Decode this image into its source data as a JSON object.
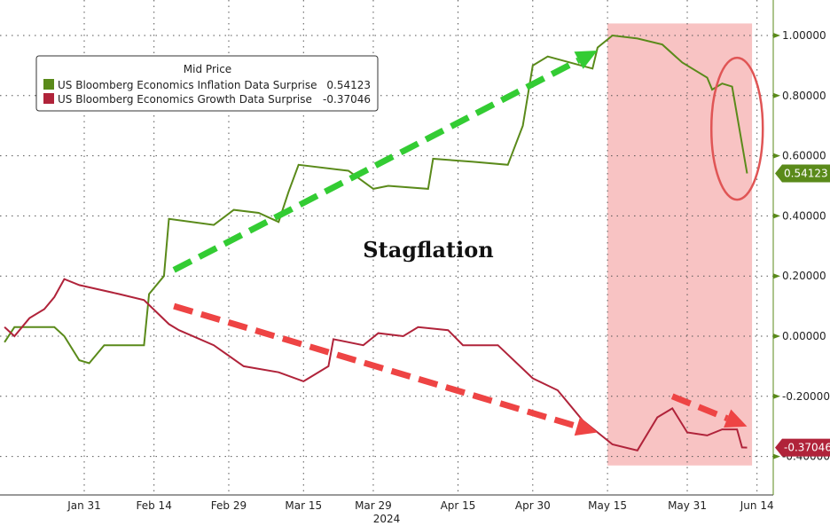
{
  "chart_data": {
    "type": "line",
    "title": "",
    "xlabel": "2024",
    "ylabel": "",
    "ylim": [
      -0.45,
      1.08
    ],
    "y_ticks": [
      "1.00000",
      "0.80000",
      "0.60000",
      "0.40000",
      "0.20000",
      "0.00000",
      "-0.20000",
      "-0.40000"
    ],
    "y_tick_values": [
      1.0,
      0.8,
      0.6,
      0.4,
      0.2,
      0.0,
      -0.2,
      -0.4
    ],
    "x_ticks": [
      {
        "label": "Jan 31",
        "date": "2024-01-31"
      },
      {
        "label": "Feb 14",
        "date": "2024-02-14"
      },
      {
        "label": "Feb 29",
        "date": "2024-02-29"
      },
      {
        "label": "Mar 15",
        "date": "2024-03-15"
      },
      {
        "label": "Mar 29",
        "date": "2024-03-29"
      },
      {
        "label": "Apr 15",
        "date": "2024-04-15"
      },
      {
        "label": "Apr 30",
        "date": "2024-04-30"
      },
      {
        "label": "May 15",
        "date": "2024-05-15"
      },
      {
        "label": "May 31",
        "date": "2024-05-31"
      },
      {
        "label": "Jun 14",
        "date": "2024-06-14"
      }
    ],
    "grid": true,
    "y_axis_side": "right",
    "legend": {
      "title": "Mid Price",
      "placement": "top-left",
      "entries": [
        {
          "name": "US Bloomberg Economics Inflation Data Surprise",
          "value": "0.54123",
          "color": "#5a8a1a"
        },
        {
          "name": "US Bloomberg Economics Growth Data Surprise",
          "value": "-0.37046",
          "color": "#b0233a"
        }
      ]
    },
    "series": [
      {
        "name": "US Bloomberg Economics Inflation Data Surprise",
        "color": "#5a8a1a",
        "last_value": "0.54123",
        "points": [
          [
            "2024-01-15",
            -0.02
          ],
          [
            "2024-01-17",
            0.03
          ],
          [
            "2024-01-25",
            0.03
          ],
          [
            "2024-01-27",
            0.0
          ],
          [
            "2024-01-30",
            -0.08
          ],
          [
            "2024-02-01",
            -0.09
          ],
          [
            "2024-02-04",
            -0.03
          ],
          [
            "2024-02-12",
            -0.03
          ],
          [
            "2024-02-13",
            0.14
          ],
          [
            "2024-02-16",
            0.2
          ],
          [
            "2024-02-17",
            0.39
          ],
          [
            "2024-02-26",
            0.37
          ],
          [
            "2024-03-01",
            0.42
          ],
          [
            "2024-03-06",
            0.41
          ],
          [
            "2024-03-10",
            0.38
          ],
          [
            "2024-03-12",
            0.48
          ],
          [
            "2024-03-14",
            0.57
          ],
          [
            "2024-03-24",
            0.55
          ],
          [
            "2024-03-29",
            0.49
          ],
          [
            "2024-04-01",
            0.5
          ],
          [
            "2024-04-09",
            0.49
          ],
          [
            "2024-04-10",
            0.59
          ],
          [
            "2024-04-18",
            0.58
          ],
          [
            "2024-04-25",
            0.57
          ],
          [
            "2024-04-28",
            0.7
          ],
          [
            "2024-04-30",
            0.9
          ],
          [
            "2024-05-03",
            0.93
          ],
          [
            "2024-05-12",
            0.89
          ],
          [
            "2024-05-13",
            0.96
          ],
          [
            "2024-05-16",
            1.0
          ],
          [
            "2024-05-21",
            0.99
          ],
          [
            "2024-05-26",
            0.97
          ],
          [
            "2024-05-30",
            0.91
          ],
          [
            "2024-06-04",
            0.86
          ],
          [
            "2024-06-05",
            0.82
          ],
          [
            "2024-06-07",
            0.84
          ],
          [
            "2024-06-09",
            0.83
          ],
          [
            "2024-06-12",
            0.54123
          ]
        ]
      },
      {
        "name": "US Bloomberg Economics Growth Data Surprise",
        "color": "#b0233a",
        "last_value": "-0.37046",
        "points": [
          [
            "2024-01-15",
            0.03
          ],
          [
            "2024-01-17",
            0.0
          ],
          [
            "2024-01-20",
            0.06
          ],
          [
            "2024-01-23",
            0.09
          ],
          [
            "2024-01-25",
            0.13
          ],
          [
            "2024-01-27",
            0.19
          ],
          [
            "2024-01-30",
            0.17
          ],
          [
            "2024-02-07",
            0.14
          ],
          [
            "2024-02-12",
            0.12
          ],
          [
            "2024-02-17",
            0.04
          ],
          [
            "2024-02-19",
            0.02
          ],
          [
            "2024-02-26",
            -0.03
          ],
          [
            "2024-03-03",
            -0.1
          ],
          [
            "2024-03-10",
            -0.12
          ],
          [
            "2024-03-15",
            -0.15
          ],
          [
            "2024-03-20",
            -0.1
          ],
          [
            "2024-03-21",
            -0.01
          ],
          [
            "2024-03-27",
            -0.03
          ],
          [
            "2024-03-30",
            0.01
          ],
          [
            "2024-04-04",
            0.0
          ],
          [
            "2024-04-07",
            0.03
          ],
          [
            "2024-04-13",
            0.02
          ],
          [
            "2024-04-16",
            -0.03
          ],
          [
            "2024-04-23",
            -0.03
          ],
          [
            "2024-04-30",
            -0.14
          ],
          [
            "2024-05-05",
            -0.18
          ],
          [
            "2024-05-10",
            -0.28
          ],
          [
            "2024-05-16",
            -0.36
          ],
          [
            "2024-05-21",
            -0.38
          ],
          [
            "2024-05-25",
            -0.27
          ],
          [
            "2024-05-28",
            -0.24
          ],
          [
            "2024-05-31",
            -0.32
          ],
          [
            "2024-06-04",
            -0.33
          ],
          [
            "2024-06-07",
            -0.31
          ],
          [
            "2024-06-10",
            -0.31
          ],
          [
            "2024-06-11",
            -0.37
          ],
          [
            "2024-06-12",
            -0.37046
          ]
        ]
      }
    ],
    "annotations": {
      "text": "Stagflation",
      "shaded_region": {
        "from": "2024-05-15",
        "to": "2024-06-13",
        "ymin": -0.43,
        "ymax": 1.04,
        "color": "#f7b8b8"
      },
      "arrows": [
        {
          "from": [
            "2024-02-18",
            0.22
          ],
          "to": [
            "2024-05-13",
            0.95
          ],
          "color": "#33cc33"
        },
        {
          "from": [
            "2024-02-18",
            0.1
          ],
          "to": [
            "2024-05-13",
            -0.32
          ],
          "color": "#ee4444"
        },
        {
          "from": [
            "2024-05-28",
            -0.2
          ],
          "to": [
            "2024-06-12",
            -0.3
          ],
          "color": "#ee4444"
        }
      ],
      "ellipse": {
        "center": [
          "2024-06-10",
          0.69
        ],
        "color": "#e05555"
      }
    }
  }
}
